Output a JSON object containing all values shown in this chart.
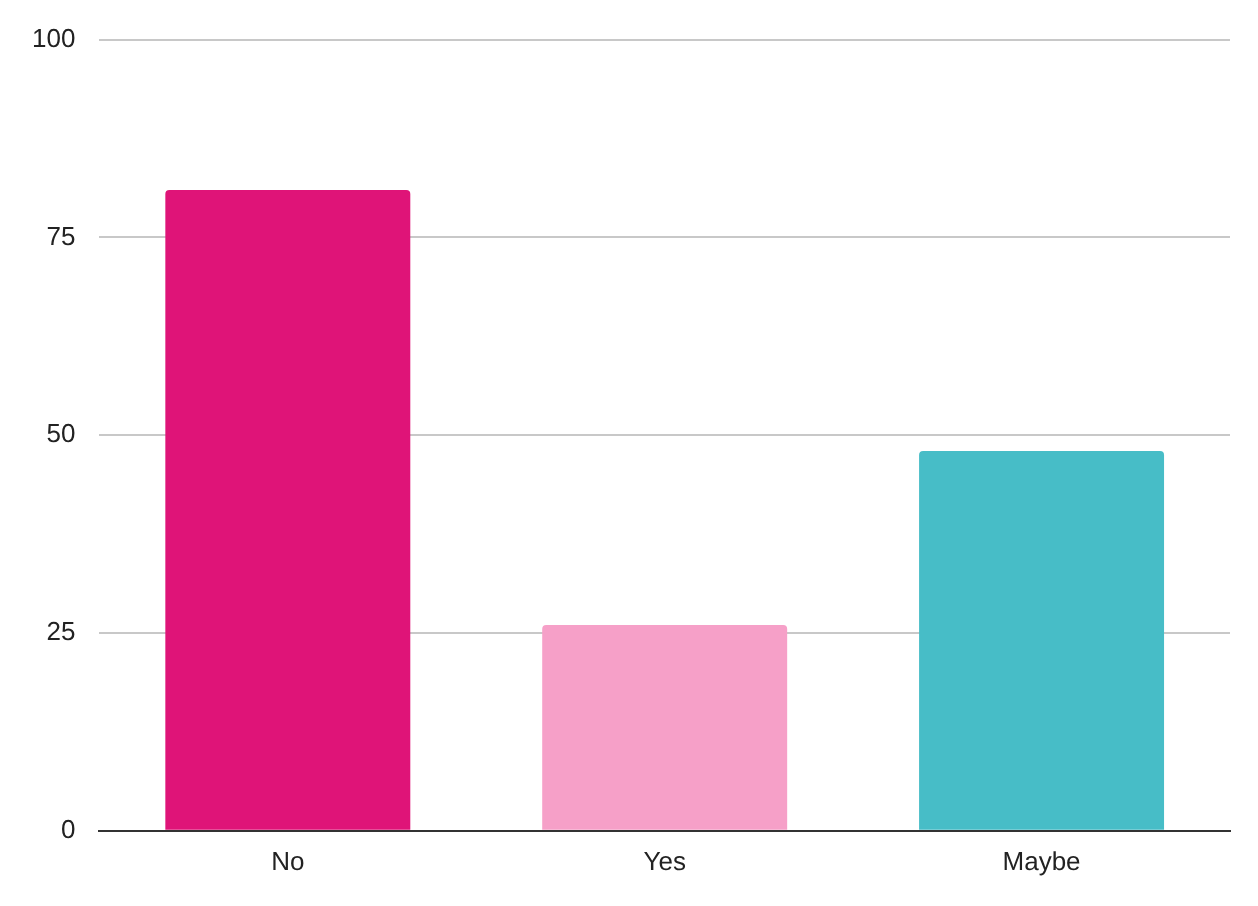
{
  "chart_data": {
    "type": "bar",
    "categories": [
      "No",
      "Yes",
      "Maybe"
    ],
    "values": [
      81,
      26,
      48
    ],
    "colors": [
      "#df1478",
      "#f6a0c8",
      "#47bdc7"
    ],
    "ylim": [
      0,
      100
    ],
    "yticks": [
      0,
      25,
      50,
      75,
      100
    ],
    "grid": "y",
    "legend": false
  }
}
